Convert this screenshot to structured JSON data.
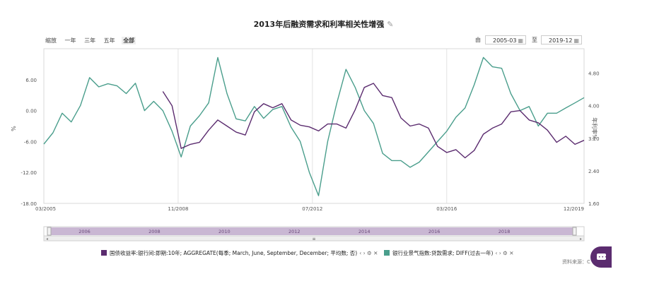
{
  "page": {
    "title": "2013年后融资需求和利率相关性增强",
    "edit_icon": "pencil-icon",
    "zoom_label": "缩放",
    "zoom_options": [
      "一年",
      "三年",
      "五年",
      "全部"
    ],
    "zoom_active": "全部",
    "range_from_label": "由",
    "range_from": "2005-03",
    "range_to_label": "至",
    "range_to": "2019-12",
    "source_text": "资料来源：C"
  },
  "legend": [
    {
      "label": "国债收益率:银行间:即期:10年; AGGREGATE(每季; March, June, September, December; 平均数; 否)",
      "color": "#5b2c6f"
    },
    {
      "label": "银行业景气指数:贷款需求; DIFF(过去一年)",
      "color": "#4a9e8c"
    }
  ],
  "navigator": {
    "years": [
      "2006",
      "2008",
      "2010",
      "2012",
      "2014",
      "2016",
      "2018"
    ],
    "handle": "≡"
  },
  "chart_data": {
    "type": "line",
    "title": "2013年后融资需求和利率相关性增强",
    "x_tick_labels": [
      "03/2005",
      "11/2008",
      "07/2012",
      "03/2016",
      "12/2019"
    ],
    "x_range": [
      "2005-03",
      "2019-12"
    ],
    "left_axis": {
      "label": "%",
      "ticks": [
        "6.00",
        "0.00",
        "-6.00",
        "-12.00",
        "-18.00"
      ],
      "range": [
        -18,
        12
      ]
    },
    "right_axis": {
      "label": "年利率%",
      "ticks": [
        "4.80",
        "4.00",
        "3.20",
        "2.40",
        "1.60"
      ],
      "range": [
        1.6,
        5.4
      ]
    },
    "grid": "vertical at x ticks",
    "series": [
      {
        "name": "银行业景气指数:贷款需求; DIFF(过去一年)",
        "axis": "left",
        "color": "#4a9e8c",
        "points": [
          [
            "2005-03",
            -6.5
          ],
          [
            "2005-06",
            -4.3
          ],
          [
            "2005-09",
            -0.5
          ],
          [
            "2005-12",
            -2.2
          ],
          [
            "2006-03",
            1.0
          ],
          [
            "2006-06",
            6.4
          ],
          [
            "2006-09",
            4.6
          ],
          [
            "2006-12",
            5.2
          ],
          [
            "2007-03",
            4.8
          ],
          [
            "2007-06",
            3.3
          ],
          [
            "2007-09",
            5.3
          ],
          [
            "2007-12",
            0.0
          ],
          [
            "2008-03",
            1.8
          ],
          [
            "2008-06",
            0.0
          ],
          [
            "2008-09",
            -4.0
          ],
          [
            "2008-12",
            -9.0
          ],
          [
            "2009-03",
            -3.0
          ],
          [
            "2009-06",
            -1.0
          ],
          [
            "2009-09",
            1.5
          ],
          [
            "2009-12",
            10.3
          ],
          [
            "2010-03",
            3.3
          ],
          [
            "2010-06",
            -1.6
          ],
          [
            "2010-09",
            -2.0
          ],
          [
            "2010-12",
            0.8
          ],
          [
            "2011-03",
            -1.5
          ],
          [
            "2011-06",
            0.2
          ],
          [
            "2011-09",
            0.8
          ],
          [
            "2011-12",
            -3.2
          ],
          [
            "2012-03",
            -6.0
          ],
          [
            "2012-06",
            -12.0
          ],
          [
            "2012-09",
            -16.5
          ],
          [
            "2012-12",
            -6.0
          ],
          [
            "2013-03",
            1.5
          ],
          [
            "2013-06",
            8.0
          ],
          [
            "2013-09",
            4.5
          ],
          [
            "2013-12",
            0.0
          ],
          [
            "2014-03",
            -2.5
          ],
          [
            "2014-06",
            -8.3
          ],
          [
            "2014-09",
            -9.7
          ],
          [
            "2014-12",
            -9.7
          ],
          [
            "2015-03",
            -11.0
          ],
          [
            "2015-06",
            -10.0
          ],
          [
            "2015-09",
            -8.0
          ],
          [
            "2015-12",
            -6.0
          ],
          [
            "2016-03",
            -4.0
          ],
          [
            "2016-06",
            -1.3
          ],
          [
            "2016-09",
            0.5
          ],
          [
            "2016-12",
            5.0
          ],
          [
            "2017-03",
            10.3
          ],
          [
            "2017-06",
            8.5
          ],
          [
            "2017-09",
            8.2
          ],
          [
            "2017-12",
            3.3
          ],
          [
            "2018-03",
            0.0
          ],
          [
            "2018-06",
            0.8
          ],
          [
            "2018-09",
            -3.0
          ],
          [
            "2018-12",
            -0.5
          ],
          [
            "2019-03",
            -0.5
          ],
          [
            "2019-06",
            0.5
          ],
          [
            "2019-09",
            1.5
          ],
          [
            "2019-12",
            2.5
          ]
        ]
      },
      {
        "name": "国债收益率:银行间:即期:10年; AGGREGATE(每季; March, June, September, December; 平均数; 否)",
        "axis": "right",
        "color": "#5b2c6f",
        "points": [
          [
            "2008-06",
            4.35
          ],
          [
            "2008-09",
            4.0
          ],
          [
            "2008-12",
            2.95
          ],
          [
            "2009-03",
            3.05
          ],
          [
            "2009-06",
            3.1
          ],
          [
            "2009-09",
            3.4
          ],
          [
            "2009-12",
            3.65
          ],
          [
            "2010-03",
            3.5
          ],
          [
            "2010-06",
            3.35
          ],
          [
            "2010-09",
            3.28
          ],
          [
            "2010-12",
            3.85
          ],
          [
            "2011-03",
            4.05
          ],
          [
            "2011-06",
            3.95
          ],
          [
            "2011-09",
            4.05
          ],
          [
            "2011-12",
            3.65
          ],
          [
            "2012-03",
            3.52
          ],
          [
            "2012-06",
            3.48
          ],
          [
            "2012-09",
            3.38
          ],
          [
            "2012-12",
            3.55
          ],
          [
            "2013-03",
            3.55
          ],
          [
            "2013-06",
            3.45
          ],
          [
            "2013-09",
            3.9
          ],
          [
            "2013-12",
            4.45
          ],
          [
            "2014-03",
            4.55
          ],
          [
            "2014-06",
            4.25
          ],
          [
            "2014-09",
            4.2
          ],
          [
            "2014-12",
            3.7
          ],
          [
            "2015-03",
            3.5
          ],
          [
            "2015-06",
            3.55
          ],
          [
            "2015-09",
            3.45
          ],
          [
            "2015-12",
            3.0
          ],
          [
            "2016-03",
            2.85
          ],
          [
            "2016-06",
            2.92
          ],
          [
            "2016-09",
            2.72
          ],
          [
            "2016-12",
            2.9
          ],
          [
            "2017-03",
            3.3
          ],
          [
            "2017-06",
            3.45
          ],
          [
            "2017-09",
            3.55
          ],
          [
            "2017-12",
            3.85
          ],
          [
            "2018-03",
            3.88
          ],
          [
            "2018-06",
            3.65
          ],
          [
            "2018-09",
            3.58
          ],
          [
            "2018-12",
            3.4
          ],
          [
            "2019-03",
            3.1
          ],
          [
            "2019-06",
            3.25
          ],
          [
            "2019-09",
            3.05
          ],
          [
            "2019-12",
            3.15
          ]
        ]
      }
    ]
  }
}
